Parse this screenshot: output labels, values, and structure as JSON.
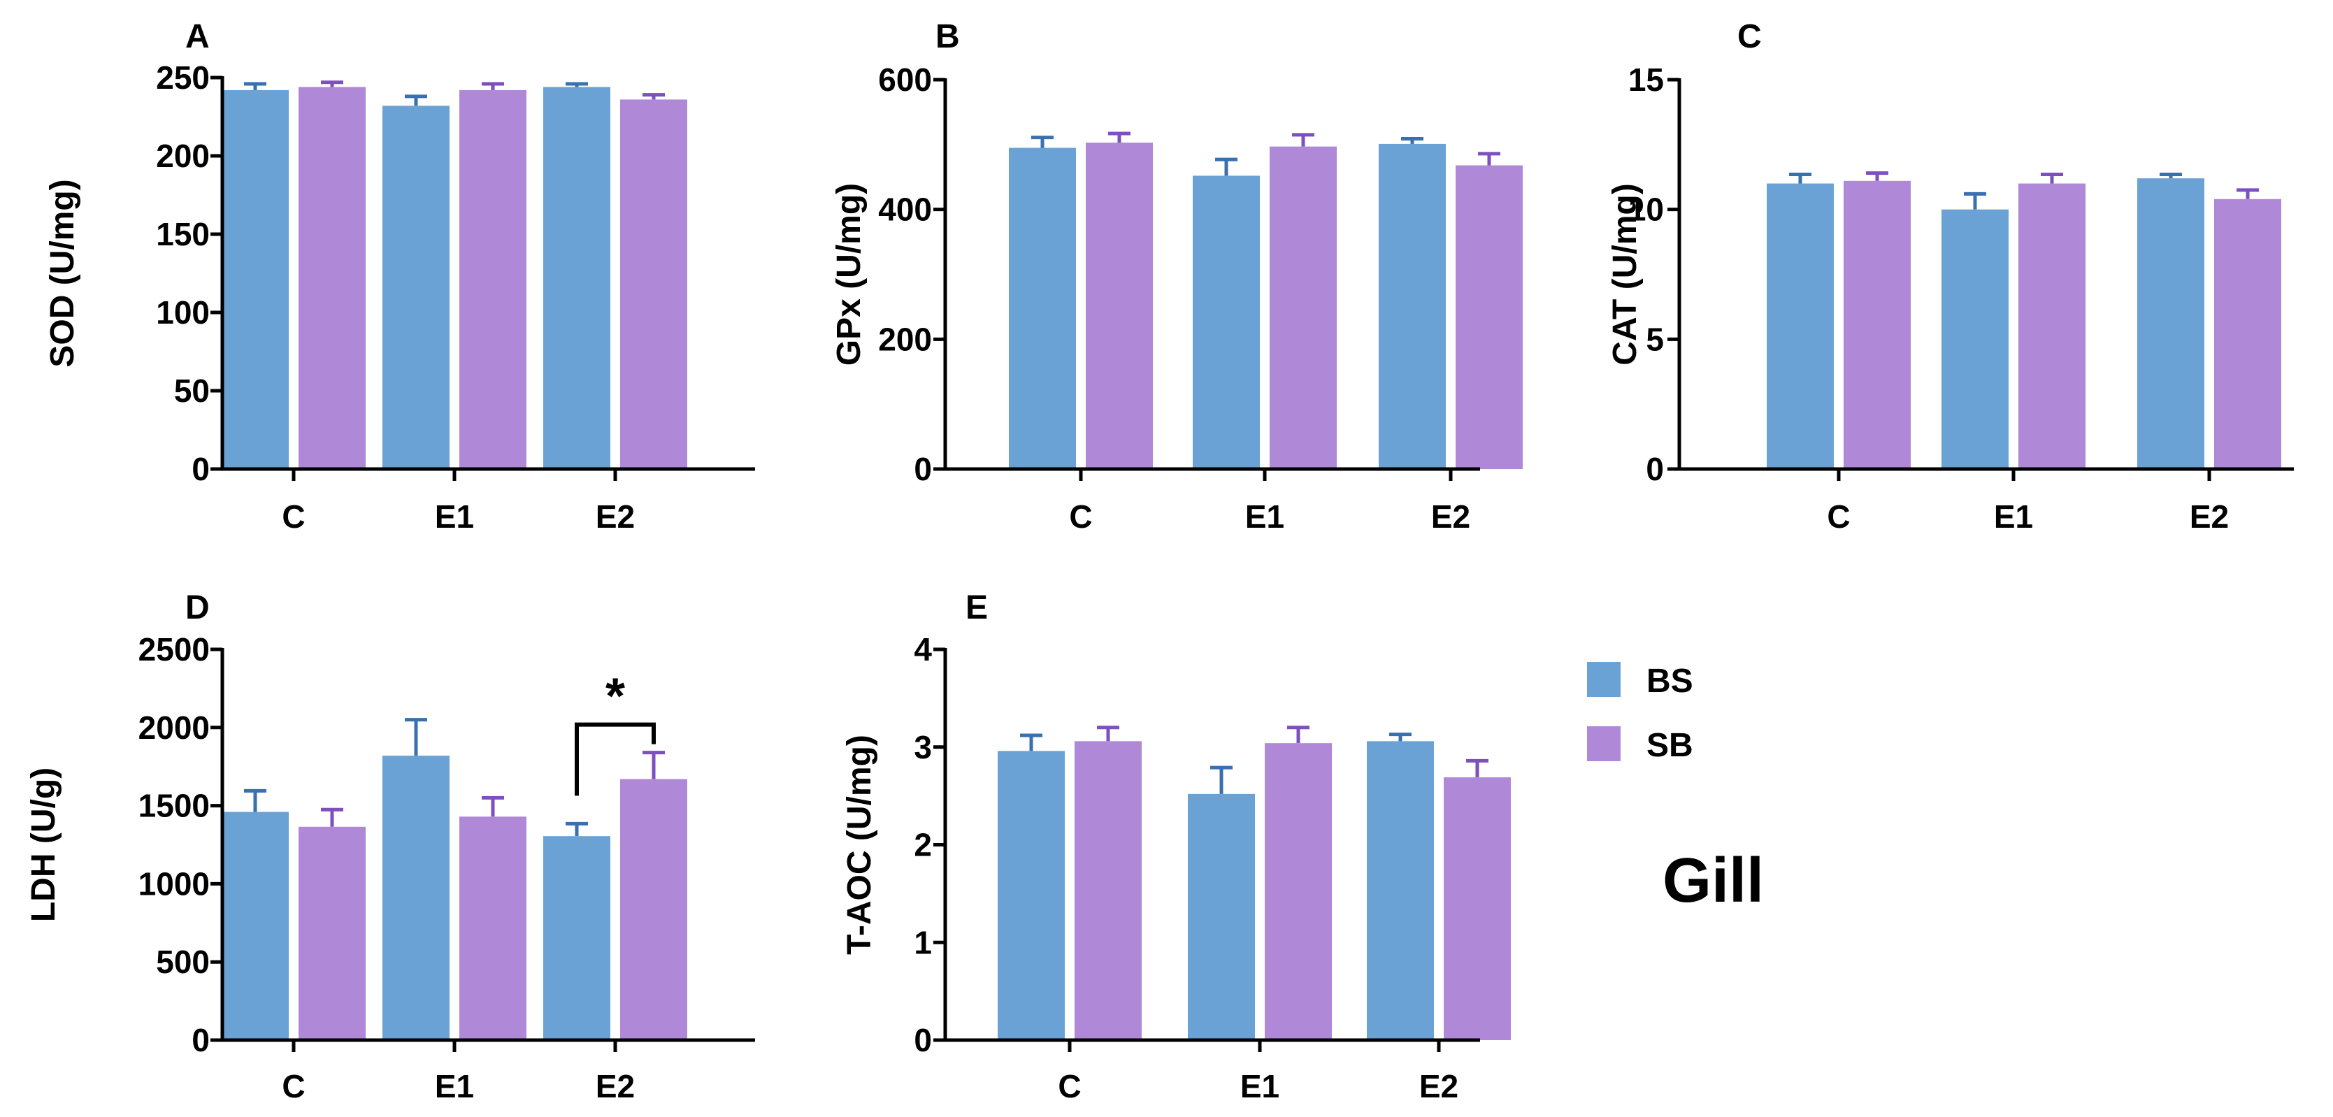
{
  "colors": {
    "BS": "#6aa2d6",
    "SB": "#af89d8",
    "BS_err": "#3a6fb0",
    "SB_err": "#7d4fbf",
    "axis": "#000000"
  },
  "legend": {
    "items": [
      {
        "key": "BS",
        "label": "BS"
      },
      {
        "key": "SB",
        "label": "SB"
      }
    ]
  },
  "tissue_label": "Gill",
  "chart_data": [
    {
      "panel": "A",
      "type": "bar",
      "ylabel": "SOD (U/mg)",
      "categories": [
        "C",
        "E1",
        "E2"
      ],
      "ylim": [
        0,
        250
      ],
      "yticks": [
        0,
        50,
        100,
        150,
        200,
        250
      ],
      "ytick_labels": [
        "0",
        "50",
        "100",
        "150",
        "200",
        "250"
      ],
      "series": [
        {
          "name": "BS",
          "values": [
            242,
            232,
            244
          ],
          "errors": [
            4,
            6,
            2
          ]
        },
        {
          "name": "SB",
          "values": [
            244,
            242,
            236
          ],
          "errors": [
            3,
            4,
            3
          ]
        }
      ],
      "annotations": []
    },
    {
      "panel": "B",
      "type": "bar",
      "ylabel": "GPx (U/mg)",
      "categories": [
        "C",
        "E1",
        "E2"
      ],
      "ylim": [
        0,
        600
      ],
      "yticks": [
        0,
        200,
        400,
        600
      ],
      "ytick_labels": [
        "0",
        "200",
        "400",
        "600"
      ],
      "series": [
        {
          "name": "BS",
          "values": [
            495,
            452,
            501
          ],
          "errors": [
            16,
            25,
            8
          ]
        },
        {
          "name": "SB",
          "values": [
            503,
            497,
            468
          ],
          "errors": [
            14,
            18,
            18
          ]
        }
      ],
      "annotations": []
    },
    {
      "panel": "C",
      "type": "bar",
      "ylabel": "CAT  (U/mg)",
      "categories": [
        "C",
        "E1",
        "E2"
      ],
      "ylim": [
        0,
        15
      ],
      "yticks": [
        0,
        5,
        10,
        15
      ],
      "ytick_labels": [
        "0",
        "5",
        "10",
        "15"
      ],
      "series": [
        {
          "name": "BS",
          "values": [
            11.0,
            10.0,
            11.2
          ],
          "errors": [
            0.35,
            0.6,
            0.15
          ]
        },
        {
          "name": "SB",
          "values": [
            11.1,
            11.0,
            10.4
          ],
          "errors": [
            0.3,
            0.35,
            0.35
          ]
        }
      ],
      "annotations": []
    },
    {
      "panel": "D",
      "type": "bar",
      "ylabel": "LDH  (U/g)",
      "categories": [
        "C",
        "E1",
        "E2"
      ],
      "ylim": [
        0,
        2500
      ],
      "yticks": [
        0,
        500,
        1000,
        1500,
        2000,
        2500
      ],
      "ytick_labels": [
        "0",
        "500",
        "1000",
        "1500",
        "2000",
        "2500"
      ],
      "series": [
        {
          "name": "BS",
          "values": [
            1460,
            1820,
            1305
          ],
          "errors": [
            135,
            230,
            80
          ]
        },
        {
          "name": "SB",
          "values": [
            1365,
            1430,
            1670
          ],
          "errors": [
            110,
            120,
            170
          ]
        }
      ],
      "annotations": [
        {
          "type": "significance",
          "category": "E2",
          "text": "*"
        }
      ]
    },
    {
      "panel": "E",
      "type": "bar",
      "ylabel": "T-AOC (U/mg)",
      "categories": [
        "C",
        "E1",
        "E2"
      ],
      "ylim": [
        0,
        4
      ],
      "yticks": [
        0,
        1,
        2,
        3,
        4
      ],
      "ytick_labels": [
        "0",
        "1",
        "2",
        "3",
        "4"
      ],
      "series": [
        {
          "name": "BS",
          "values": [
            2.96,
            2.52,
            3.06
          ],
          "errors": [
            0.16,
            0.27,
            0.07
          ]
        },
        {
          "name": "SB",
          "values": [
            3.06,
            3.04,
            2.69
          ],
          "errors": [
            0.14,
            0.16,
            0.17
          ]
        }
      ],
      "annotations": []
    }
  ]
}
